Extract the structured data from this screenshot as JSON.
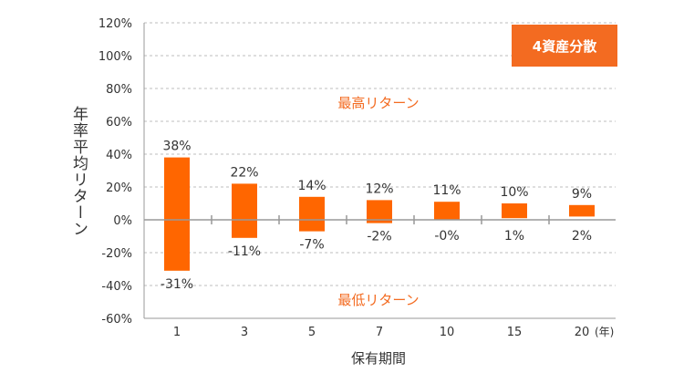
{
  "badge": "4資産分散",
  "labels": {
    "max": "最高リターン",
    "min": "最低リターン"
  },
  "chart_data": {
    "type": "bar",
    "title": "",
    "xlabel": "保有期間",
    "ylabel": "年率平均リターン",
    "x_unit": "(年)",
    "ylim": [
      -60,
      120
    ],
    "yticks": [
      -60,
      -40,
      -20,
      0,
      20,
      40,
      60,
      80,
      100,
      120
    ],
    "ytick_labels": [
      "-60%",
      "-40%",
      "-20%",
      "0%",
      "20%",
      "40%",
      "60%",
      "80%",
      "100%",
      "120%"
    ],
    "grid": true,
    "categories": [
      "1",
      "3",
      "5",
      "7",
      "10",
      "15",
      "20"
    ],
    "series": [
      {
        "values_max": [
          38,
          22,
          14,
          12,
          11,
          10,
          9
        ],
        "values_min": [
          -31,
          -11,
          -7,
          -2,
          0,
          1,
          2
        ],
        "labels_max": [
          "38%",
          "22%",
          "14%",
          "12%",
          "11%",
          "10%",
          "9%"
        ],
        "labels_min": [
          "-31%",
          "-11%",
          "-7%",
          "-2%",
          "-0%",
          "1%",
          "2%"
        ]
      }
    ],
    "bar_color": "#ff6600"
  }
}
